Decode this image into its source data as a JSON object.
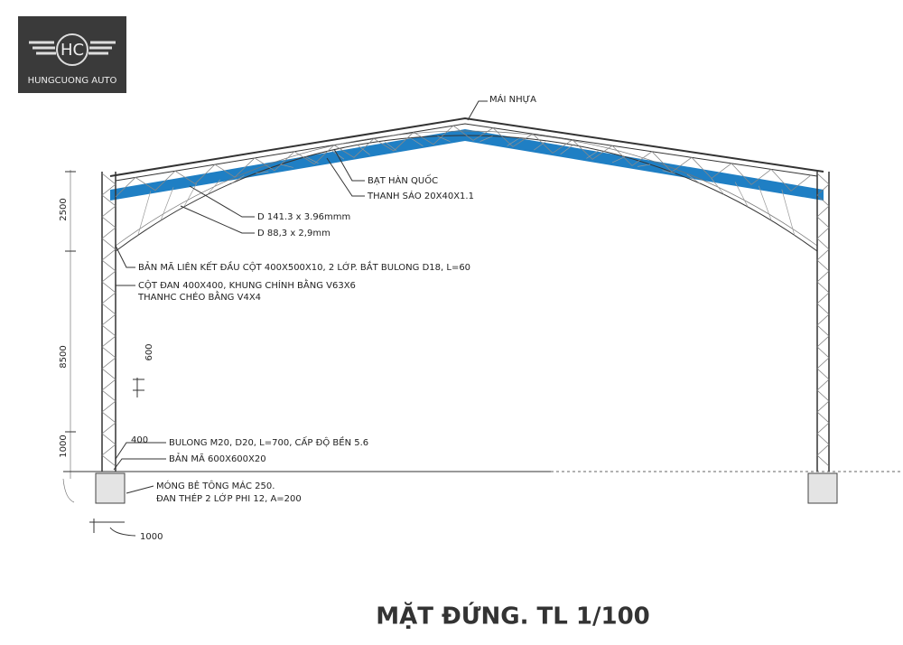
{
  "logo": {
    "mark": "HC",
    "name": "HUNGCUONG AUTO"
  },
  "labels": {
    "roof": "MÁI NHỰA",
    "tarp": "BẠT HÀN QUỐC",
    "batten": "THANH SÁO 20X40X1.1",
    "pipe_large": "D 141.3 x 3.96mmm",
    "pipe_small": "D 88,3 x 2,9mm",
    "column_plate": "BẢN MÃ LIÊN KẾT ĐẦU CỘT 400X500X10, 2 LỚP. BẮT BULONG  D18, L=60",
    "column_1": "CỘT ĐAN 400X400, KHUNG CHÍNH BẰNG V63X6",
    "column_2": "THANHC CHÉO BẰNG V4X4",
    "bolt": "BULONG M20, D20, L=700, CẤP ĐỘ BỀN 5.6",
    "base_plate": "BẢN MÃ 600X600X20",
    "footing_1": "MÓNG BÊ TÔNG MÁC 250.",
    "footing_2": "ĐAN THÉP 2 LỚP PHI 12, A=200"
  },
  "dimensions": {
    "truss_height": 2500,
    "column_height": 8500,
    "base_height": 1000,
    "panel": 600,
    "column_width": 400,
    "footing_width": 1000
  },
  "title": "MẶT ĐỨNG. TL 1/100"
}
